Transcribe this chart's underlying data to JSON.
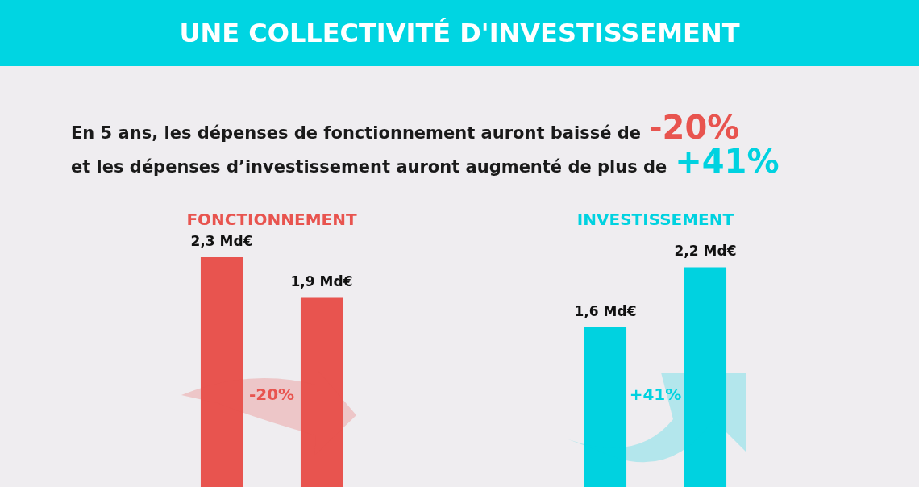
{
  "chart_data": [
    {
      "type": "other",
      "title": "UNE COLLECTIVITÉ D'INVESTISSEMENT",
      "annotations": [
        "En 5 ans, les dépenses de fonctionnement auront baissé de",
        "-20%",
        "et les dépenses d’investissement auront augmenté de plus de",
        "+41%"
      ]
    },
    {
      "type": "bar",
      "title": "FONCTIONNEMENT",
      "categories": [
        null,
        null
      ],
      "values": [
        2.3,
        1.9
      ],
      "color": "#e8544f",
      "value_labels": [
        "2,3 Md€",
        "1,9 Md€"
      ],
      "annotations": [
        "-20%"
      ]
    },
    {
      "type": "bar",
      "title": "INVESTISSEMENT",
      "categories": [
        null,
        null
      ],
      "values": [
        1.6,
        2.2
      ],
      "color": "#00d2e0",
      "value_labels": [
        "1,6 Md€",
        "2,2 Md€"
      ],
      "annotations": [
        "+41%"
      ]
    }
  ]
}
